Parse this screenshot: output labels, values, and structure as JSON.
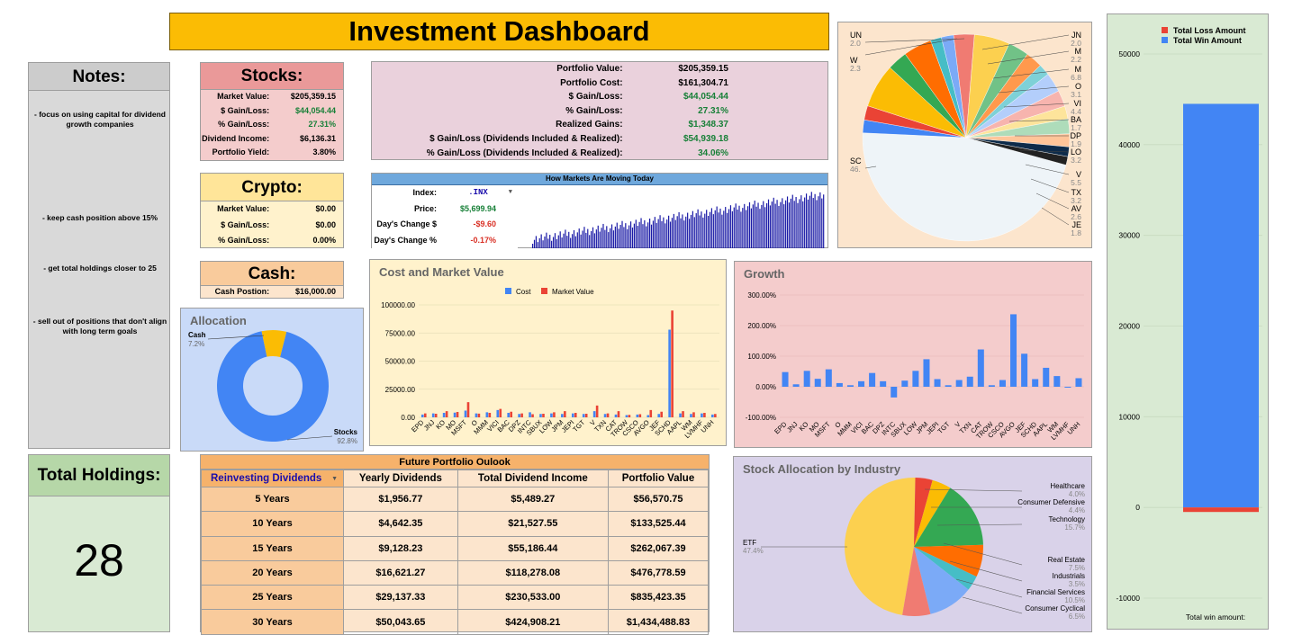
{
  "title": "Investment Dashboard",
  "notes": {
    "header": "Notes:",
    "items": [
      "- focus on using capital for dividend growth companies",
      "- keep cash position above 15%",
      "- get total holdings closer to 25",
      "- sell out of positions that don't align with long term goals"
    ]
  },
  "stocks": {
    "header": "Stocks:",
    "rows": [
      {
        "label": "Market Value:",
        "value": "$205,359.15"
      },
      {
        "label": "$ Gain/Loss:",
        "value": "$44,054.44"
      },
      {
        "label": "% Gain/Loss:",
        "value": "27.31%"
      },
      {
        "label": "Dividend Income:",
        "value": "$6,136.31"
      },
      {
        "label": "Portfolio Yield:",
        "value": "3.80%"
      }
    ]
  },
  "crypto": {
    "header": "Crypto:",
    "rows": [
      {
        "label": "Market Value:",
        "value": "$0.00"
      },
      {
        "label": "$ Gain/Loss:",
        "value": "$0.00"
      },
      {
        "label": "% Gain/Loss:",
        "value": "0.00%"
      }
    ]
  },
  "cash": {
    "header": "Cash:",
    "label": "Cash Postion:",
    "value": "$16,000.00"
  },
  "summary": {
    "rows": [
      {
        "label": "Portfolio Value:",
        "value": "$205,359.15"
      },
      {
        "label": "Portfolio Cost:",
        "value": "$161,304.71"
      },
      {
        "label": "$ Gain/Loss:",
        "value": "$44,054.44"
      },
      {
        "label": "% Gain/Loss:",
        "value": "27.31%"
      },
      {
        "label": "Realized Gains:",
        "value": "$1,348.37"
      },
      {
        "label": "$ Gain/Loss (Dividends Included & Realized):",
        "value": "$54,939.18"
      },
      {
        "label": "% Gain/Loss (Dividends Included & Realized):",
        "value": "34.06%"
      }
    ]
  },
  "markets": {
    "header": "How Markets Are Moving Today",
    "index_label": "Index:",
    "index_value": ".INX",
    "price_label": "Price:",
    "price_value": "$5,699.94",
    "change_label": "Day's Change $",
    "change_value": "-$9.60",
    "pct_label": "Day's Change %",
    "pct_value": "-0.17%"
  },
  "holdings": {
    "header": "Total Holdings:",
    "count": "28"
  },
  "future": {
    "header": "Future Portfolio Oulook",
    "selector": "Reinvesting Dividends",
    "columns": [
      "Yearly Dividends",
      "Total Dividend Income",
      "Portfolio Value"
    ],
    "rows": [
      {
        "period": "5 Years",
        "yearly": "$1,956.77",
        "total": "$5,489.27",
        "value": "$56,570.75"
      },
      {
        "period": "10 Years",
        "yearly": "$4,642.35",
        "total": "$21,527.55",
        "value": "$133,525.44"
      },
      {
        "period": "15 Years",
        "yearly": "$9,128.23",
        "total": "$55,186.44",
        "value": "$262,067.39"
      },
      {
        "period": "20 Years",
        "yearly": "$16,621.27",
        "total": "$118,278.08",
        "value": "$476,778.59"
      },
      {
        "period": "25 Years",
        "yearly": "$29,137.33",
        "total": "$230,533.00",
        "value": "$835,423.35"
      },
      {
        "period": "30 Years",
        "yearly": "$50,043.65",
        "total": "$424,908.21",
        "value": "$1,434,488.83"
      }
    ]
  },
  "colors": {
    "blue": "#4285f4",
    "red": "#ea4335",
    "yellow": "#fbbc04",
    "green": "#34a853",
    "orange": "#ff6d01",
    "dark_blue": "#1a0dab"
  },
  "chart_data": [
    {
      "id": "allocation",
      "type": "pie",
      "title": "Allocation",
      "donut": true,
      "slices": [
        {
          "label": "Cash",
          "pct_text": "7.2%",
          "value": 7.2,
          "color": "#fbbc04"
        },
        {
          "label": "Stocks",
          "pct_text": "92.8%",
          "value": 92.8,
          "color": "#4285f4"
        }
      ]
    },
    {
      "id": "holdings_pie",
      "type": "pie",
      "title": "",
      "labels_left": [
        {
          "label": "UN",
          "pct_text": "2.0"
        },
        {
          "label": "W",
          "pct_text": "2.3"
        },
        {
          "label": "SC",
          "pct_text": "46."
        }
      ],
      "labels_right": [
        {
          "label": "JN",
          "pct_text": "2.0"
        },
        {
          "label": "M",
          "pct_text": "2.2"
        },
        {
          "label": "M",
          "pct_text": "6.8"
        },
        {
          "label": "O",
          "pct_text": "3.1"
        },
        {
          "label": "VI",
          "pct_text": "4.4"
        },
        {
          "label": "BA",
          "pct_text": "1.7"
        },
        {
          "label": "DP",
          "pct_text": "1.9"
        },
        {
          "label": "LO",
          "pct_text": "3.2"
        },
        {
          "label": "V",
          "pct_text": "5.5"
        },
        {
          "label": "TX",
          "pct_text": "3.2"
        },
        {
          "label": "AV",
          "pct_text": "2.6"
        },
        {
          "label": "JE",
          "pct_text": "1.8"
        }
      ],
      "values": [
        46,
        2.0,
        2.2,
        6.8,
        3.1,
        4.4,
        1.7,
        1.9,
        3.2,
        5.5,
        3.2,
        2.6,
        1.8,
        3.0,
        2.5,
        2.0,
        2.3,
        2.0,
        1.5,
        1.3
      ],
      "colors": [
        "#eef4f8",
        "#4285f4",
        "#ea4335",
        "#fbbc04",
        "#34a853",
        "#ff6d01",
        "#46bdc6",
        "#7baaf7",
        "#f07b72",
        "#fcd04f",
        "#71c287",
        "#ff994d",
        "#7ed1d7",
        "#b3cefb",
        "#f7b4ae",
        "#fde49b",
        "#aedcba",
        "#ffc599",
        "#0d2b4a",
        "#222222"
      ]
    },
    {
      "id": "cost_market",
      "type": "bar",
      "title": "Cost and Market Value",
      "legend": [
        "Cost",
        "Market Value"
      ],
      "categories": [
        "EPD",
        "JNJ",
        "KO",
        "MO",
        "MSFT",
        "O",
        "MMM",
        "VICI",
        "BAC",
        "DPZ",
        "INTC",
        "SBUX",
        "LOW",
        "JPM",
        "JEPI",
        "TGT",
        "V",
        "TXN",
        "CAT",
        "TROW",
        "CSCO",
        "AVGO",
        "JEF",
        "SCHD",
        "AAPL",
        "WM",
        "LVMHF",
        "UNH"
      ],
      "series": [
        {
          "name": "Cost",
          "color": "#4285f4",
          "values": [
            2500,
            3500,
            4000,
            4200,
            6000,
            3500,
            4500,
            6500,
            4000,
            3000,
            4500,
            3000,
            3500,
            3000,
            3500,
            3000,
            5500,
            3000,
            2500,
            2000,
            2500,
            2000,
            3000,
            78000,
            3500,
            3000,
            3500,
            2500
          ]
        },
        {
          "name": "Market Value",
          "color": "#ea4335",
          "values": [
            3500,
            3200,
            5500,
            4800,
            13500,
            3300,
            4000,
            7500,
            5000,
            3500,
            2800,
            3200,
            4500,
            5500,
            4000,
            3200,
            10500,
            3500,
            5500,
            2200,
            2800,
            6500,
            5000,
            95000,
            5500,
            4500,
            4000,
            3000
          ]
        }
      ],
      "ylim": [
        0,
        100000
      ],
      "yticks": [
        "100000.00",
        "75000.00",
        "50000.00",
        "25000.00",
        "0.00"
      ]
    },
    {
      "id": "growth",
      "type": "bar",
      "title": "Growth",
      "categories": [
        "EPD",
        "JNJ",
        "KO",
        "MO",
        "MSFT",
        "O",
        "MMM",
        "VICI",
        "BAC",
        "DPZ",
        "INTC",
        "SBUX",
        "LOW",
        "JPM",
        "JEPI",
        "TGT",
        "V",
        "TXN",
        "CAT",
        "TROW",
        "CSCO",
        "AVGO",
        "JEF",
        "SCHD",
        "AAPL",
        "WM",
        "LVMHF",
        "UNH"
      ],
      "values": [
        48,
        8,
        52,
        26,
        57,
        12,
        5,
        18,
        45,
        18,
        -35,
        20,
        52,
        90,
        25,
        5,
        22,
        33,
        122,
        5,
        22,
        237,
        108,
        25,
        62,
        35,
        0,
        28
      ],
      "ylim": [
        -100,
        300
      ],
      "yticks": [
        "300.00%",
        "200.00%",
        "100.00%",
        "0.00%",
        "-100.00%"
      ]
    },
    {
      "id": "industry",
      "type": "pie",
      "title": "Stock Allocation by Industry",
      "slices": [
        {
          "label": "ETF",
          "pct_text": "47.4%",
          "value": 47.4,
          "color": "#fcd04f"
        },
        {
          "label": "Healthcare",
          "pct_text": "4.0%",
          "value": 4.0,
          "color": "#ea4335"
        },
        {
          "label": "Consumer Defensive",
          "pct_text": "4.4%",
          "value": 4.4,
          "color": "#fbbc04"
        },
        {
          "label": "Technology",
          "pct_text": "15.7%",
          "value": 15.7,
          "color": "#34a853"
        },
        {
          "label": "Real Estate",
          "pct_text": "7.5%",
          "value": 7.5,
          "color": "#ff6d01"
        },
        {
          "label": "Industrials",
          "pct_text": "3.5%",
          "value": 3.5,
          "color": "#46bdc6"
        },
        {
          "label": "Financial Services",
          "pct_text": "10.5%",
          "value": 10.5,
          "color": "#7baaf7"
        },
        {
          "label": "Consumer Cyclical",
          "pct_text": "6.5%",
          "value": 6.5,
          "color": "#f07b72"
        }
      ]
    },
    {
      "id": "win_loss",
      "type": "bar",
      "legend": [
        "Total Loss Amount",
        "Total Win Amount"
      ],
      "series": [
        {
          "name": "Total Loss Amount",
          "color": "#ea4335",
          "value": -500
        },
        {
          "name": "Total Win Amount",
          "color": "#4285f4",
          "value": 44500
        }
      ],
      "ylim": [
        -10000,
        50000
      ],
      "yticks": [
        "50000",
        "40000",
        "30000",
        "20000",
        "10000",
        "0",
        "-10000"
      ],
      "xlabel": "Total win amount:"
    }
  ]
}
